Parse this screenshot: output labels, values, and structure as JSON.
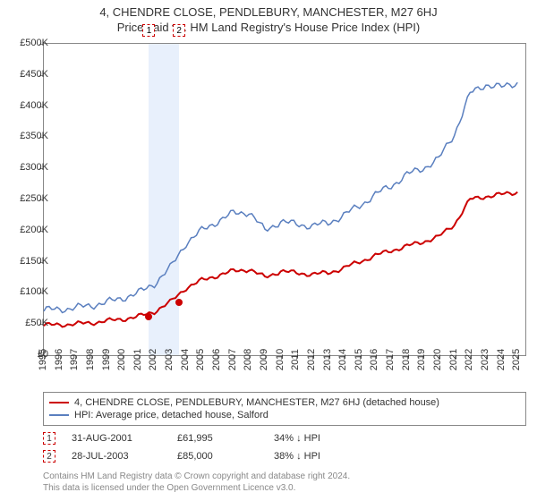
{
  "title": "4, CHENDRE CLOSE, PENDLEBURY, MANCHESTER, M27 6HJ",
  "subtitle": "Price paid vs. HM Land Registry's House Price Index (HPI)",
  "chart": {
    "type": "line",
    "background_color": "#ffffff",
    "border_color": "#888888",
    "label_fontsize": 11,
    "x_years": [
      1995,
      1996,
      1997,
      1998,
      1999,
      2000,
      2001,
      2002,
      2003,
      2004,
      2005,
      2006,
      2007,
      2008,
      2009,
      2010,
      2011,
      2012,
      2013,
      2014,
      2015,
      2016,
      2017,
      2018,
      2019,
      2020,
      2021,
      2022,
      2023,
      2024,
      2025
    ],
    "xlim": [
      1995,
      2025.5
    ],
    "ylim": [
      0,
      500000
    ],
    "ytick_step": 50000,
    "ytick_prefix": "£",
    "ytick_suffix": "K",
    "highlight_band": {
      "start": 2001.66,
      "end": 2003.57,
      "color": "#e8f0fc"
    },
    "series_red": {
      "label": "4, CHENDRE CLOSE, PENDLEBURY, MANCHESTER, M27 6HJ (detached house)",
      "color": "#cc0000",
      "line_width": 2,
      "years": [
        1995,
        1996,
        1997,
        1998,
        1999,
        2000,
        2001,
        2002,
        2003,
        2004,
        2005,
        2006,
        2007,
        2008,
        2009,
        2010,
        2011,
        2012,
        2013,
        2014,
        2015,
        2016,
        2017,
        2018,
        2019,
        2020,
        2021,
        2022,
        2023,
        2024,
        2025
      ],
      "values": [
        48000,
        49000,
        50000,
        52000,
        55000,
        58000,
        62000,
        70000,
        85000,
        108000,
        120000,
        128000,
        135000,
        138000,
        125000,
        135000,
        132000,
        130000,
        132000,
        140000,
        150000,
        160000,
        168000,
        175000,
        182000,
        190000,
        210000,
        250000,
        255000,
        258000,
        262000
      ]
    },
    "series_blue": {
      "label": "HPI: Average price, detached house, Salford",
      "color": "#5a7fbf",
      "line_width": 1.5,
      "years": [
        1995,
        1996,
        1997,
        1998,
        1999,
        2000,
        2001,
        2002,
        2003,
        2004,
        2005,
        2006,
        2007,
        2008,
        2009,
        2010,
        2011,
        2012,
        2013,
        2014,
        2015,
        2016,
        2017,
        2018,
        2019,
        2020,
        2021,
        2022,
        2023,
        2024,
        2025
      ],
      "values": [
        72000,
        74000,
        76000,
        80000,
        85000,
        92000,
        100000,
        115000,
        140000,
        180000,
        200000,
        215000,
        228000,
        230000,
        200000,
        215000,
        210000,
        208000,
        212000,
        225000,
        240000,
        258000,
        272000,
        290000,
        300000,
        315000,
        355000,
        420000,
        435000,
        430000,
        438000
      ]
    },
    "sale_points": [
      {
        "n": "1",
        "year": 2001.66,
        "value": 61995,
        "color": "#cc0000"
      },
      {
        "n": "2",
        "year": 2003.57,
        "value": 85000,
        "color": "#cc0000"
      }
    ]
  },
  "sales": [
    {
      "n": "1",
      "date": "31-AUG-2001",
      "price": "£61,995",
      "pct": "34% ↓ HPI"
    },
    {
      "n": "2",
      "date": "28-JUL-2003",
      "price": "£85,000",
      "pct": "38% ↓ HPI"
    }
  ],
  "footnote_l1": "Contains HM Land Registry data © Crown copyright and database right 2024.",
  "footnote_l2": "This data is licensed under the Open Government Licence v3.0."
}
